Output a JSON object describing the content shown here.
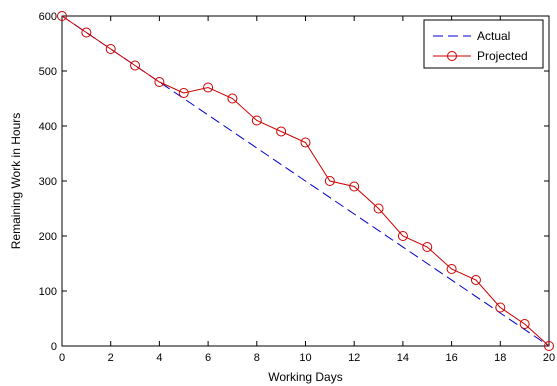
{
  "chart_data": {
    "type": "line",
    "title": "",
    "xlabel": "Working Days",
    "ylabel": "Remaining Work in Hours",
    "xlim": [
      0,
      20
    ],
    "ylim": [
      0,
      600
    ],
    "xticks": [
      0,
      2,
      4,
      6,
      8,
      10,
      12,
      14,
      16,
      18,
      20
    ],
    "yticks": [
      0,
      100,
      200,
      300,
      400,
      500,
      600
    ],
    "grid": false,
    "legend_position": "top-right",
    "series": [
      {
        "name": "Actual",
        "color": "#0000cc",
        "line_style": "dashed",
        "marker": "none",
        "x": [
          0,
          20
        ],
        "y": [
          600,
          0
        ]
      },
      {
        "name": "Projected",
        "color": "#cc0000",
        "line_style": "solid",
        "marker": "circle",
        "x": [
          0,
          1,
          2,
          3,
          4,
          5,
          6,
          7,
          8,
          9,
          10,
          11,
          12,
          13,
          14,
          15,
          16,
          17,
          18,
          19,
          20
        ],
        "y": [
          600,
          570,
          540,
          510,
          480,
          460,
          470,
          450,
          410,
          390,
          370,
          300,
          290,
          250,
          200,
          180,
          140,
          120,
          70,
          40,
          0
        ]
      }
    ]
  }
}
